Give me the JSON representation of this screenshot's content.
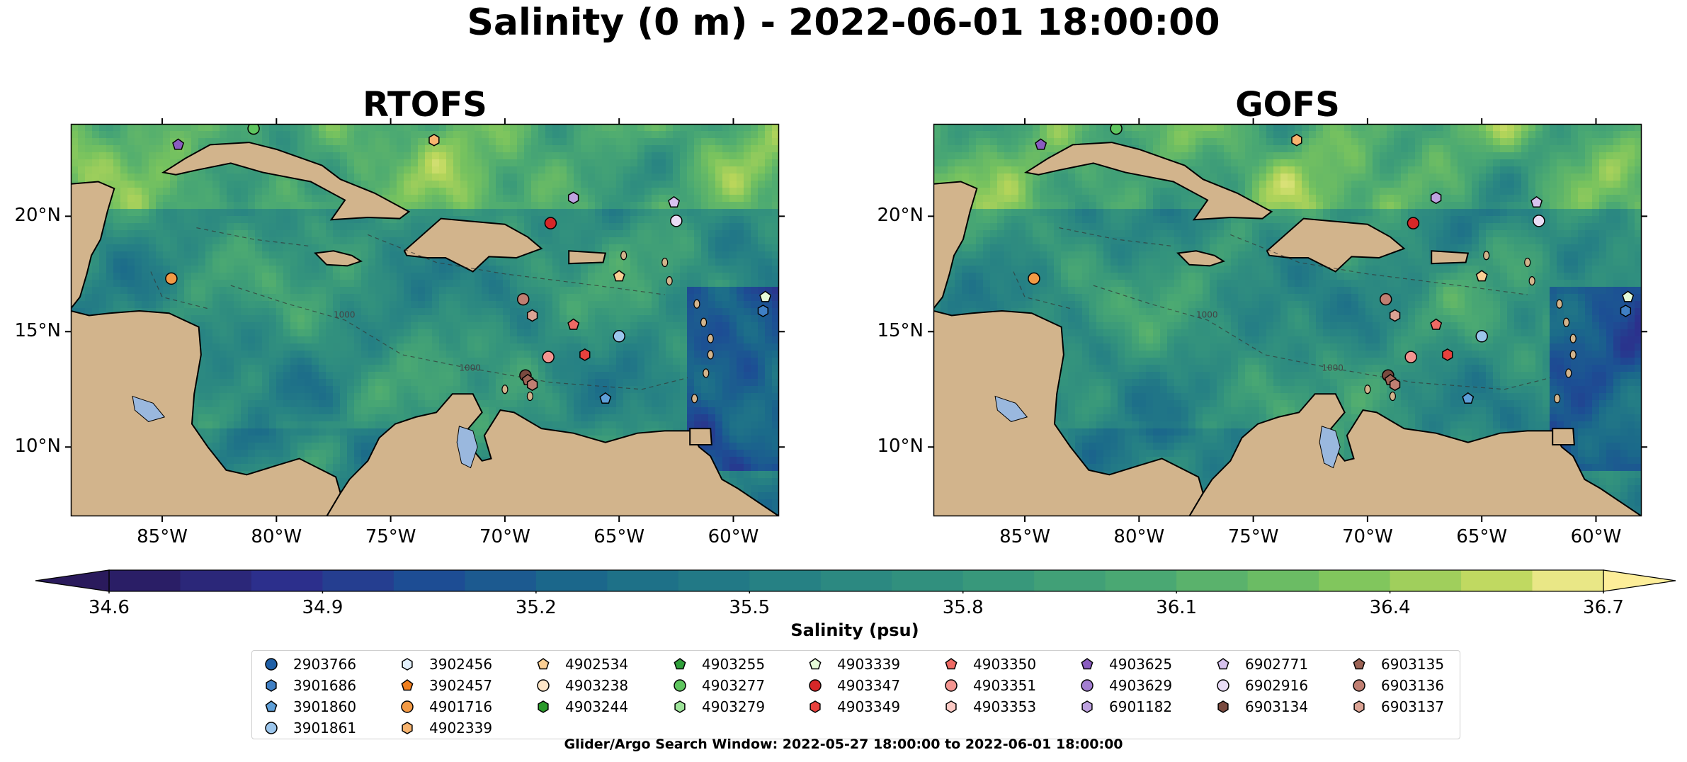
{
  "title": "Salinity (0 m) - 2022-06-01 18:00:00",
  "panels": [
    {
      "title": "RTOFS"
    },
    {
      "title": "GOFS"
    }
  ],
  "map_extent": {
    "lon": [
      -89,
      -58
    ],
    "lat": [
      7,
      24
    ]
  },
  "y_ticks": [
    {
      "lat": 20,
      "label": "20°N"
    },
    {
      "lat": 15,
      "label": "15°N"
    },
    {
      "lat": 10,
      "label": "10°N"
    }
  ],
  "x_ticks": [
    {
      "lon": -85,
      "label": "85°W"
    },
    {
      "lon": -80,
      "label": "80°W"
    },
    {
      "lon": -75,
      "label": "75°W"
    },
    {
      "lon": -70,
      "label": "70°W"
    },
    {
      "lon": -65,
      "label": "65°W"
    },
    {
      "lon": -60,
      "label": "60°W"
    }
  ],
  "colorbar": {
    "label": "Salinity (psu)",
    "min": 34.6,
    "max": 36.7,
    "step": 0.1,
    "extend": "both",
    "tick_labels": [
      "34.6",
      "34.9",
      "35.2",
      "35.5",
      "35.8",
      "36.1",
      "36.4",
      "36.7"
    ],
    "colormap": "haline"
  },
  "colors": {
    "land": "#d2b48c",
    "lakes": "#9ab8de",
    "coastline": "#000000"
  },
  "contour_labels": [
    "1000"
  ],
  "legend": {
    "columns": [
      [
        {
          "id": "2903766",
          "marker": "circle",
          "color": "#1f5fa6"
        },
        {
          "id": "3901686",
          "marker": "hexagon",
          "color": "#3f7fc4"
        },
        {
          "id": "3901860",
          "marker": "pentagon",
          "color": "#5e9fd8"
        },
        {
          "id": "3901861",
          "marker": "circle",
          "color": "#9cc6ec"
        }
      ],
      [
        {
          "id": "3902456",
          "marker": "hexagon",
          "color": "#e3f0fb"
        },
        {
          "id": "3902457",
          "marker": "pentagon",
          "color": "#f07f1e"
        },
        {
          "id": "4901716",
          "marker": "circle",
          "color": "#f39a45"
        },
        {
          "id": "4902339",
          "marker": "hexagon",
          "color": "#f8b46f"
        }
      ],
      [
        {
          "id": "4902534",
          "marker": "pentagon",
          "color": "#fbcf94"
        },
        {
          "id": "4903238",
          "marker": "circle",
          "color": "#fde6c8"
        },
        {
          "id": "4903244",
          "marker": "hexagon",
          "color": "#2a9a2a"
        }
      ],
      [
        {
          "id": "4903255",
          "marker": "pentagon",
          "color": "#2f9f3a"
        },
        {
          "id": "4903277",
          "marker": "circle",
          "color": "#5fc55f"
        },
        {
          "id": "4903279",
          "marker": "hexagon",
          "color": "#9ee49a"
        }
      ],
      [
        {
          "id": "4903339",
          "marker": "pentagon",
          "color": "#e6fbd8"
        },
        {
          "id": "4903347",
          "marker": "circle",
          "color": "#d62728"
        },
        {
          "id": "4903349",
          "marker": "hexagon",
          "color": "#e8413d"
        }
      ],
      [
        {
          "id": "4903350",
          "marker": "pentagon",
          "color": "#ef6a64"
        },
        {
          "id": "4903351",
          "marker": "circle",
          "color": "#f49590"
        },
        {
          "id": "4903353",
          "marker": "hexagon",
          "color": "#fbc9c4"
        }
      ],
      [
        {
          "id": "4903625",
          "marker": "pentagon",
          "color": "#8a5cc0"
        },
        {
          "id": "4903629",
          "marker": "circle",
          "color": "#a37ed0"
        },
        {
          "id": "6901182",
          "marker": "hexagon",
          "color": "#bea2e0"
        }
      ],
      [
        {
          "id": "6902771",
          "marker": "pentagon",
          "color": "#d7c2ee"
        },
        {
          "id": "6902916",
          "marker": "circle",
          "color": "#e9dcf6"
        },
        {
          "id": "6903134",
          "marker": "hexagon",
          "color": "#7a4a3f"
        }
      ],
      [
        {
          "id": "6903135",
          "marker": "pentagon",
          "color": "#9c6355"
        },
        {
          "id": "6903136",
          "marker": "circle",
          "color": "#c07f72"
        },
        {
          "id": "6903137",
          "marker": "hexagon",
          "color": "#dba394"
        }
      ]
    ]
  },
  "floats": [
    {
      "lon": -84.3,
      "lat": 23.1,
      "marker": "pentagon",
      "color": "#8a5cc0"
    },
    {
      "lon": -81.0,
      "lat": 23.8,
      "marker": "circle",
      "color": "#5fc55f"
    },
    {
      "lon": -73.1,
      "lat": 23.3,
      "marker": "hexagon",
      "color": "#f8b46f"
    },
    {
      "lon": -67.0,
      "lat": 20.8,
      "marker": "hexagon",
      "color": "#bea2e0"
    },
    {
      "lon": -62.6,
      "lat": 20.6,
      "marker": "pentagon",
      "color": "#d7c2ee"
    },
    {
      "lon": -62.5,
      "lat": 19.8,
      "marker": "circle",
      "color": "#e9dcf6"
    },
    {
      "lon": -68.0,
      "lat": 19.7,
      "marker": "circle",
      "color": "#d62728"
    },
    {
      "lon": -84.6,
      "lat": 17.3,
      "marker": "circle",
      "color": "#f39a45"
    },
    {
      "lon": -65.0,
      "lat": 17.4,
      "marker": "pentagon",
      "color": "#fbcf94"
    },
    {
      "lon": -69.2,
      "lat": 16.4,
      "marker": "circle",
      "color": "#c07f72"
    },
    {
      "lon": -68.8,
      "lat": 15.7,
      "marker": "hexagon",
      "color": "#dba394"
    },
    {
      "lon": -67.0,
      "lat": 15.3,
      "marker": "pentagon",
      "color": "#ef6a64"
    },
    {
      "lon": -58.6,
      "lat": 16.5,
      "marker": "pentagon",
      "color": "#e6fbd8"
    },
    {
      "lon": -58.7,
      "lat": 15.9,
      "marker": "hexagon",
      "color": "#3f7fc4"
    },
    {
      "lon": -65.0,
      "lat": 14.8,
      "marker": "circle",
      "color": "#9cc6ec"
    },
    {
      "lon": -68.1,
      "lat": 13.9,
      "marker": "circle",
      "color": "#f49590"
    },
    {
      "lon": -66.5,
      "lat": 14.0,
      "marker": "hexagon",
      "color": "#e8413d"
    },
    {
      "lon": -69.1,
      "lat": 13.1,
      "marker": "circle",
      "color": "#7a4a3f"
    },
    {
      "lon": -69.0,
      "lat": 12.9,
      "marker": "pentagon",
      "color": "#9c6355"
    },
    {
      "lon": -68.8,
      "lat": 12.7,
      "marker": "hexagon",
      "color": "#c07f72"
    },
    {
      "lon": -65.6,
      "lat": 12.1,
      "marker": "pentagon",
      "color": "#5e9fd8"
    }
  ],
  "search_window": "Glider/Argo Search Window: 2022-05-27 18:00:00 to 2022-06-01 18:00:00"
}
